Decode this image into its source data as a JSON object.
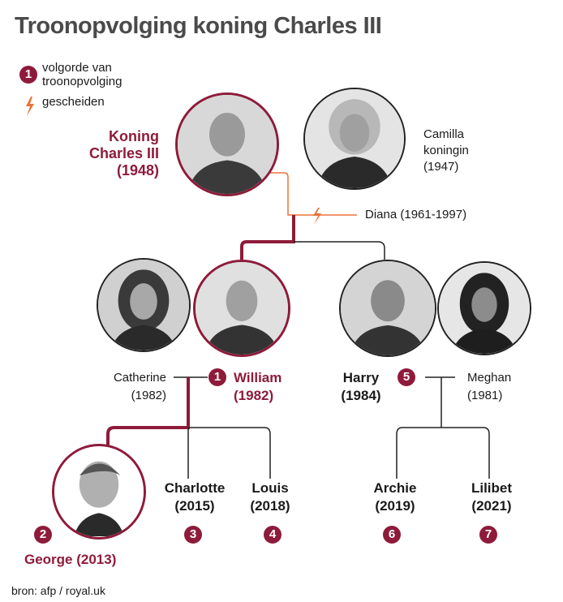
{
  "title": "Troonopvolging koning Charles III",
  "legend": {
    "order_label": "volgorde van troonopvolging",
    "order_badge": "1",
    "divorced_label": "gescheiden",
    "divorced_icon": "lightning-bolt-icon"
  },
  "colors": {
    "accent": "#8e1b3a",
    "divorce": "#e8733a",
    "text": "#1a1a1a"
  },
  "people": {
    "charles": {
      "name": "Koning Charles III",
      "line1": "Koning",
      "line2": "Charles III",
      "year": "(1948)"
    },
    "camilla": {
      "line1": "Camilla",
      "line2": "koningin",
      "year": "(1947)"
    },
    "diana": {
      "label": "Diana (1961-1997)"
    },
    "catherine": {
      "name": "Catherine",
      "year": "(1982)"
    },
    "william": {
      "name": "William",
      "year": "(1982)",
      "rank": "1"
    },
    "harry": {
      "name": "Harry",
      "year": "(1984)",
      "rank": "5"
    },
    "meghan": {
      "name": "Meghan",
      "year": "(1981)"
    },
    "george": {
      "label": "George (2013)",
      "rank": "2"
    },
    "charlotte": {
      "name": "Charlotte",
      "year": "(2015)",
      "rank": "3"
    },
    "louis": {
      "name": "Louis",
      "year": "(2018)",
      "rank": "4"
    },
    "archie": {
      "name": "Archie",
      "year": "(2019)",
      "rank": "6"
    },
    "lilibet": {
      "name": "Lilibet",
      "year": "(2021)",
      "rank": "7"
    }
  },
  "source": "bron:  afp / royal.uk"
}
